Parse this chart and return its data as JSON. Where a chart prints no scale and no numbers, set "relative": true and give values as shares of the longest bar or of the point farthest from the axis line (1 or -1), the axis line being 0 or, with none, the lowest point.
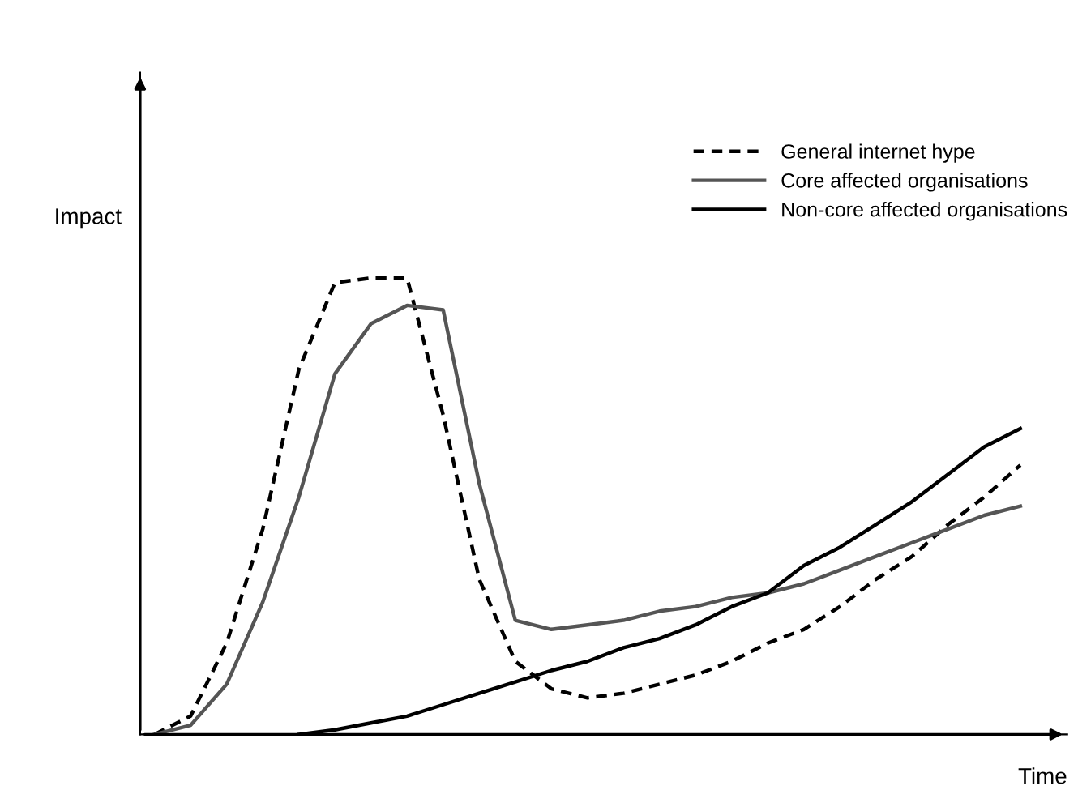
{
  "chart_data": {
    "type": "line",
    "relative": true,
    "xlabel": "Time",
    "ylabel": "Impact",
    "legend": "top right",
    "grid": false,
    "categories": [
      null,
      null,
      null,
      null,
      null,
      null,
      null,
      null,
      null,
      null,
      null,
      null,
      null,
      null,
      null,
      null,
      null,
      null,
      null,
      null,
      null,
      null,
      null,
      null,
      null
    ],
    "series": [
      {
        "name": "General internet hype",
        "color": "#000000",
        "line_style": "dashed",
        "values": [
          0,
          0.04,
          0.2,
          0.45,
          0.8,
          0.99,
          1,
          1,
          0.7,
          0.34,
          0.16,
          0.1,
          0.08,
          0.09,
          0.11,
          0.13,
          0.16,
          0.2,
          0.23,
          0.28,
          0.34,
          0.39,
          0.46,
          0.52,
          0.59
        ]
      },
      {
        "name": "Core affected organisations",
        "color": "#555555",
        "line_style": "solid",
        "values": [
          0,
          0.02,
          0.11,
          0.29,
          0.52,
          0.79,
          0.9,
          0.94,
          0.93,
          0.55,
          0.25,
          0.23,
          0.24,
          0.25,
          0.27,
          0.28,
          0.3,
          0.31,
          0.33,
          0.36,
          0.39,
          0.42,
          0.45,
          0.48,
          0.5
        ]
      },
      {
        "name": "Non-core affected organisations",
        "color": "#000000",
        "line_style": "solid",
        "values": [
          null,
          null,
          null,
          null,
          0,
          0.01,
          0.025,
          0.04,
          0.065,
          0.09,
          0.115,
          0.14,
          0.16,
          0.19,
          0.21,
          0.24,
          0.28,
          0.31,
          0.37,
          0.41,
          0.46,
          0.51,
          0.57,
          0.63,
          0.67
        ]
      }
    ]
  }
}
